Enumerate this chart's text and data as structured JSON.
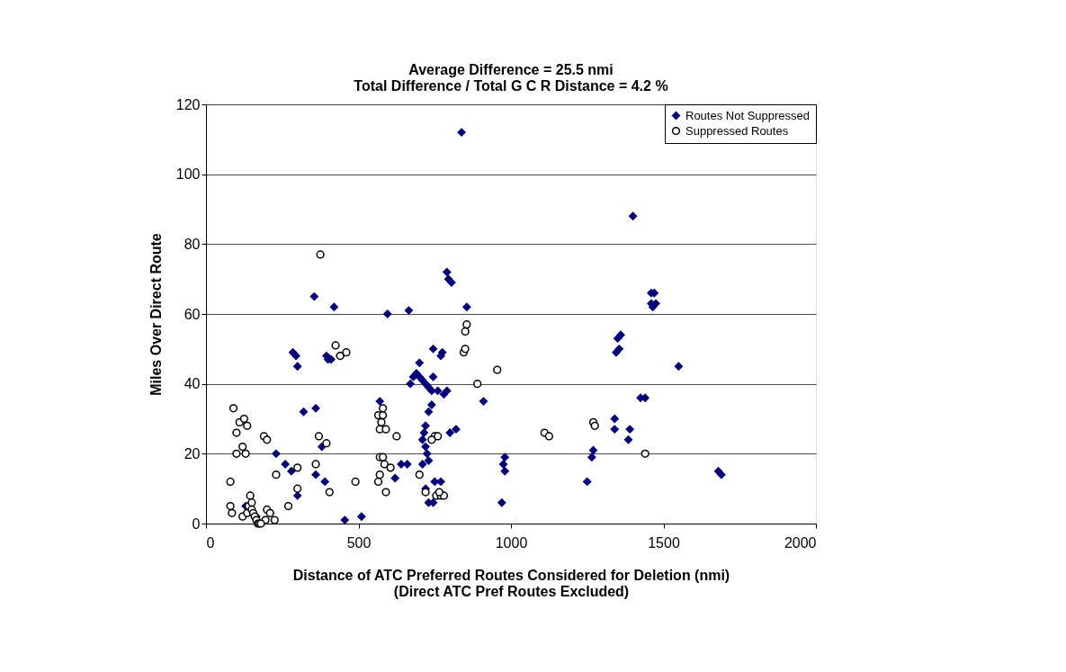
{
  "chart_data": {
    "type": "scatter",
    "title": "Average Difference = 25.5 nmi\nTotal Difference / Total G C R Distance = 4.2 %",
    "xlabel": "Distance of ATC Preferred Routes Considered for Deletion (nmi)\n(Direct ATC Pref Routes Excluded)",
    "ylabel": "Miles Over Direct Route",
    "xlim": [
      0,
      2000
    ],
    "xticks": [
      0,
      500,
      1000,
      1500,
      2000
    ],
    "ylim": [
      0,
      120
    ],
    "yticks": [
      0,
      20,
      40,
      60,
      80,
      100,
      120
    ],
    "grid": "y",
    "legend": "top right",
    "series": [
      {
        "name": "Routes Not Suppressed",
        "color": "#000080",
        "marker": "diamond",
        "x": [
          838,
          1400,
          1460,
          1470,
          1460,
          1465,
          1475,
          790,
          795,
          805,
          855,
          355,
          420,
          595,
          665,
          1360,
          1350,
          1355,
          1345,
          1550,
          285,
          295,
          300,
          395,
          400,
          410,
          440,
          745,
          775,
          770,
          700,
          690,
          700,
          710,
          680,
          670,
          720,
          730,
          740,
          760,
          780,
          790,
          745,
          570,
          910,
          360,
          320,
          740,
          730,
          1340,
          1340,
          1390,
          1385,
          800,
          820,
          720,
          715,
          710,
          720,
          725,
          730,
          710,
          380,
          230,
          260,
          280,
          390,
          360,
          640,
          660,
          620,
          750,
          770,
          980,
          975,
          980,
          970,
          1270,
          1265,
          1250,
          1680,
          1690,
          300,
          720,
          730,
          745,
          760,
          455,
          510,
          130,
          165,
          210,
          1425,
          1440
        ],
        "values": [
          112,
          88,
          66,
          66,
          63,
          62,
          63,
          72,
          70,
          69,
          62,
          65,
          62,
          60,
          61,
          54,
          53,
          50,
          49,
          45,
          49,
          48,
          45,
          48,
          47,
          47,
          48,
          50,
          49,
          48,
          46,
          43,
          42,
          41,
          42,
          40,
          40,
          39,
          38,
          38,
          37,
          38,
          42,
          35,
          35,
          33,
          32,
          34,
          32,
          30,
          27,
          27,
          24,
          26,
          27,
          28,
          26,
          24,
          22,
          20,
          18,
          17,
          22,
          20,
          17,
          15,
          12,
          14,
          17,
          17,
          13,
          12,
          12,
          19,
          17,
          15,
          6,
          21,
          19,
          12,
          15,
          14,
          8,
          10,
          6,
          6,
          8,
          1,
          2,
          5,
          2,
          3,
          36,
          36
        ]
      },
      {
        "name": "Suppressed Routes",
        "color": "#000000",
        "marker": "circle",
        "x": [
          375,
          425,
          460,
          440,
          855,
          850,
          845,
          850,
          955,
          890,
          90,
          110,
          125,
          135,
          100,
          120,
          130,
          100,
          190,
          200,
          360,
          370,
          395,
          405,
          300,
          300,
          565,
          580,
          580,
          575,
          570,
          590,
          625,
          570,
          580,
          585,
          605,
          590,
          565,
          570,
          700,
          720,
          750,
          760,
          740,
          755,
          770,
          780,
          765,
          1110,
          1125,
          1270,
          1275,
          1440,
          490,
          230,
          270,
          225,
          200,
          210,
          80,
          80,
          85,
          120,
          135,
          140,
          145,
          150,
          150,
          155,
          160,
          165,
          170,
          175,
          195,
          180
        ],
        "values": [
          77,
          51,
          49,
          48,
          57,
          55,
          49,
          50,
          44,
          40,
          33,
          29,
          30,
          28,
          26,
          22,
          20,
          20,
          25,
          24,
          17,
          25,
          23,
          9,
          16,
          10,
          31,
          33,
          31,
          29,
          27,
          27,
          25,
          19,
          19,
          17,
          16,
          9,
          12,
          14,
          14,
          9,
          25,
          25,
          24,
          8,
          8,
          8,
          9,
          26,
          25,
          29,
          28,
          20,
          12,
          14,
          5,
          1,
          4,
          3,
          12,
          5,
          3,
          2,
          3,
          5,
          8,
          6,
          4,
          3,
          2,
          1,
          0,
          0,
          1,
          0
        ]
      }
    ]
  }
}
